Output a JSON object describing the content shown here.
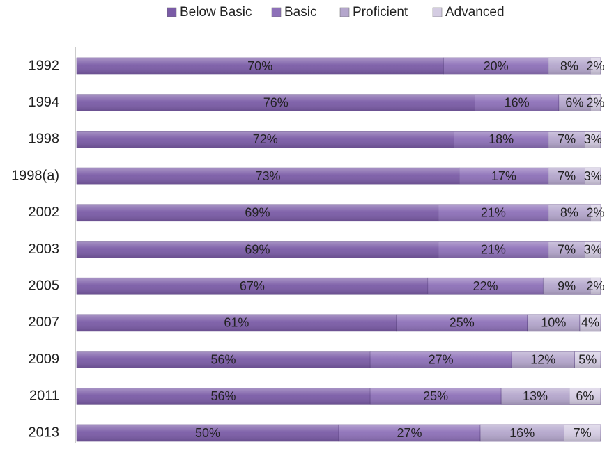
{
  "chart_data": {
    "type": "stacked-bar-horizontal",
    "categories": [
      "1992",
      "1994",
      "1998",
      "1998(a)",
      "2002",
      "2003",
      "2005",
      "2007",
      "2009",
      "2011",
      "2013"
    ],
    "xlim": [
      0,
      100
    ],
    "legend": "top",
    "series": [
      {
        "name": "Below Basic",
        "color": "#7a5ba6",
        "values": [
          70,
          76,
          72,
          73,
          69,
          69,
          67,
          61,
          56,
          56,
          50
        ],
        "value_labels": [
          "70%",
          "76%",
          "72%",
          "73%",
          "69%",
          "69%",
          "67%",
          "61%",
          "56%",
          "56%",
          "50%"
        ]
      },
      {
        "name": "Basic",
        "color": "#8d70b8",
        "values": [
          20,
          16,
          18,
          17,
          21,
          21,
          22,
          25,
          27,
          25,
          27
        ],
        "value_labels": [
          "20%",
          "16%",
          "18%",
          "17%",
          "21%",
          "21%",
          "22%",
          "25%",
          "27%",
          "25%",
          "27%"
        ]
      },
      {
        "name": "Proficient",
        "color": "#b4a6cc",
        "values": [
          8,
          6,
          7,
          7,
          8,
          7,
          9,
          10,
          12,
          13,
          16
        ],
        "value_labels": [
          "8%",
          "6%",
          "7%",
          "7%",
          "8%",
          "7%",
          "9%",
          "10%",
          "12%",
          "13%",
          "16%"
        ]
      },
      {
        "name": "Advanced",
        "color": "#d4cce2",
        "values": [
          2,
          2,
          3,
          3,
          2,
          3,
          2,
          4,
          5,
          6,
          7
        ],
        "value_labels": [
          "2%",
          "2%",
          "3%",
          "3%",
          "2%",
          "3%",
          "2%",
          "4%",
          "5%",
          "6%",
          "7%"
        ]
      }
    ]
  }
}
